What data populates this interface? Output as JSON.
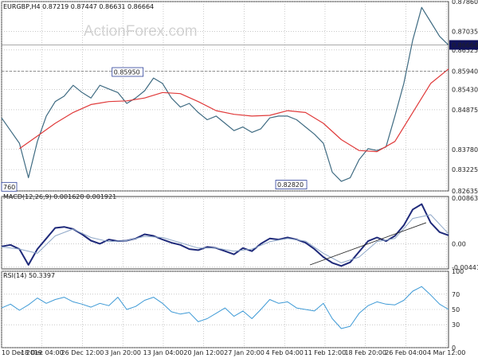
{
  "watermark": "ActionForex.com",
  "colors": {
    "price": "#3f6b82",
    "ma": "#e03a3a",
    "macd": "#1f2a7a",
    "signal": "#8fa8c8",
    "rsi": "#3e9ad6",
    "grid": "#a9a9a9",
    "flag_bg": "#10125a"
  },
  "chart_data": [
    {
      "type": "line",
      "title": "EURGBP,H4  0.87219 0.87447 0.86631 0.86664",
      "ylim": [
        0.82635,
        0.8786
      ],
      "y_ticks": [
        "0.87860",
        "0.87035",
        "0.86525",
        "0.85940",
        "0.85430",
        "0.84875",
        "0.83780",
        "0.83225",
        "0.82635"
      ],
      "current_price": "0.86664",
      "level_label": "0.85940",
      "grid": true,
      "annotations": [
        {
          "text": "0.85950",
          "x": 0.282,
          "y": 0.8595
        },
        {
          "text": "0.82820",
          "x": 0.648,
          "y": 0.8282
        },
        {
          "text": "760",
          "x": 0.0,
          "y": 0.8276
        }
      ],
      "series": [
        {
          "role": "price",
          "x": [
            0,
            0.02,
            0.04,
            0.06,
            0.08,
            0.1,
            0.12,
            0.14,
            0.16,
            0.18,
            0.2,
            0.22,
            0.24,
            0.26,
            0.28,
            0.3,
            0.32,
            0.34,
            0.36,
            0.38,
            0.4,
            0.42,
            0.44,
            0.46,
            0.48,
            0.5,
            0.52,
            0.54,
            0.56,
            0.58,
            0.6,
            0.62,
            0.64,
            0.66,
            0.68,
            0.7,
            0.72,
            0.74,
            0.76,
            0.78,
            0.8,
            0.82,
            0.84,
            0.86,
            0.88,
            0.9,
            0.92,
            0.94,
            0.96,
            0.98,
            1.0
          ],
          "values": [
            0.8465,
            0.843,
            0.8395,
            0.83,
            0.84,
            0.847,
            0.851,
            0.8525,
            0.8555,
            0.8535,
            0.852,
            0.8555,
            0.8545,
            0.8535,
            0.8505,
            0.852,
            0.854,
            0.8575,
            0.856,
            0.852,
            0.8495,
            0.8505,
            0.848,
            0.846,
            0.847,
            0.845,
            0.843,
            0.844,
            0.8425,
            0.8435,
            0.8465,
            0.847,
            0.847,
            0.846,
            0.844,
            0.842,
            0.8395,
            0.8315,
            0.829,
            0.83,
            0.835,
            0.838,
            0.8375,
            0.8385,
            0.847,
            0.856,
            0.868,
            0.877,
            0.873,
            0.869,
            0.8666
          ]
        },
        {
          "role": "ma",
          "x": [
            0.04,
            0.08,
            0.12,
            0.16,
            0.2,
            0.24,
            0.28,
            0.32,
            0.36,
            0.4,
            0.44,
            0.48,
            0.52,
            0.56,
            0.6,
            0.64,
            0.68,
            0.72,
            0.76,
            0.8,
            0.84,
            0.88,
            0.92,
            0.96,
            1.0
          ],
          "values": [
            0.838,
            0.8415,
            0.845,
            0.848,
            0.8502,
            0.851,
            0.8512,
            0.852,
            0.8535,
            0.8532,
            0.851,
            0.8485,
            0.8475,
            0.847,
            0.8472,
            0.8485,
            0.848,
            0.845,
            0.8405,
            0.8375,
            0.8372,
            0.84,
            0.848,
            0.856,
            0.86
          ]
        }
      ]
    },
    {
      "type": "line",
      "title": "MACD(12,26,9) 0.001628 0.001921",
      "ylim": [
        -0.00475,
        0.00895
      ],
      "y_ticks": [
        "0.008635",
        "0.00",
        "-0.004415"
      ],
      "grid": true,
      "series": [
        {
          "role": "macd",
          "x": [
            0,
            0.02,
            0.04,
            0.06,
            0.08,
            0.1,
            0.12,
            0.14,
            0.16,
            0.18,
            0.2,
            0.22,
            0.24,
            0.26,
            0.28,
            0.3,
            0.32,
            0.34,
            0.36,
            0.38,
            0.4,
            0.42,
            0.44,
            0.46,
            0.48,
            0.5,
            0.52,
            0.54,
            0.56,
            0.58,
            0.6,
            0.62,
            0.64,
            0.66,
            0.68,
            0.7,
            0.72,
            0.74,
            0.76,
            0.78,
            0.8,
            0.82,
            0.84,
            0.86,
            0.88,
            0.9,
            0.92,
            0.94,
            0.96,
            0.98,
            1.0
          ],
          "values": [
            -0.0005,
            -0.0002,
            -0.001,
            -0.004,
            -0.001,
            0.001,
            0.003,
            0.0032,
            0.0028,
            0.0018,
            0.0006,
            0.0,
            0.0008,
            0.0005,
            0.0006,
            0.001,
            0.0018,
            0.0015,
            0.0008,
            0.0002,
            -0.0002,
            -0.001,
            -0.0012,
            -0.0006,
            -0.0008,
            -0.0014,
            -0.002,
            -0.0008,
            -0.0014,
            0.0,
            0.001,
            0.0008,
            0.0012,
            0.0008,
            0.0002,
            -0.001,
            -0.0025,
            -0.0036,
            -0.0042,
            -0.0035,
            -0.0015,
            0.0005,
            0.0012,
            0.0005,
            0.0015,
            0.0035,
            0.0065,
            0.0075,
            0.004,
            0.0022,
            0.0016
          ]
        },
        {
          "role": "signal",
          "x": [
            0,
            0.04,
            0.08,
            0.12,
            0.16,
            0.2,
            0.24,
            0.28,
            0.32,
            0.36,
            0.4,
            0.44,
            0.48,
            0.52,
            0.56,
            0.6,
            0.64,
            0.68,
            0.72,
            0.76,
            0.8,
            0.84,
            0.88,
            0.92,
            0.96,
            1.0
          ],
          "values": [
            -0.0006,
            -0.001,
            -0.0018,
            0.0015,
            0.0028,
            0.0012,
            0.0004,
            0.0006,
            0.0014,
            0.0012,
            0.0002,
            -0.0008,
            -0.0008,
            -0.0014,
            -0.001,
            0.0004,
            0.001,
            0.0005,
            -0.0018,
            -0.0036,
            -0.0025,
            0.0004,
            0.001,
            0.0048,
            0.0055,
            0.0019
          ]
        },
        {
          "role": "trendline",
          "x": [
            0.69,
            0.95
          ],
          "values": [
            -0.004,
            0.004
          ]
        }
      ]
    },
    {
      "type": "line",
      "title": "RSI(14) 50.3397",
      "ylim": [
        0,
        100
      ],
      "y_ticks": [
        "100",
        "70",
        "50",
        "30",
        "0"
      ],
      "grid": true,
      "series": [
        {
          "role": "rsi",
          "x": [
            0,
            0.02,
            0.04,
            0.06,
            0.08,
            0.1,
            0.12,
            0.14,
            0.16,
            0.18,
            0.2,
            0.22,
            0.24,
            0.26,
            0.28,
            0.3,
            0.32,
            0.34,
            0.36,
            0.38,
            0.4,
            0.42,
            0.44,
            0.46,
            0.48,
            0.5,
            0.52,
            0.54,
            0.56,
            0.58,
            0.6,
            0.62,
            0.64,
            0.66,
            0.68,
            0.7,
            0.72,
            0.74,
            0.76,
            0.78,
            0.8,
            0.82,
            0.84,
            0.86,
            0.88,
            0.9,
            0.92,
            0.94,
            0.96,
            0.98,
            1.0
          ],
          "values": [
            52,
            57,
            49,
            56,
            65,
            58,
            63,
            66,
            60,
            57,
            53,
            58,
            55,
            66,
            50,
            54,
            62,
            66,
            58,
            47,
            44,
            46,
            34,
            38,
            45,
            52,
            41,
            48,
            38,
            50,
            63,
            58,
            60,
            52,
            50,
            48,
            58,
            38,
            25,
            28,
            45,
            55,
            60,
            57,
            56,
            62,
            74,
            80,
            69,
            57,
            50
          ]
        }
      ]
    }
  ],
  "x_labels": [
    "10 Dec 2019",
    "18 Dec 04:00",
    "26 Dec 12:00",
    "3 Jan 20:00",
    "13 Jan 04:00",
    "20 Jan 12:00",
    "27 Jan 20:00",
    "4 Feb 04:00",
    "11 Feb 12:00",
    "18 Feb 20:00",
    "26 Feb 04:00",
    "4 Mar 12:00"
  ]
}
